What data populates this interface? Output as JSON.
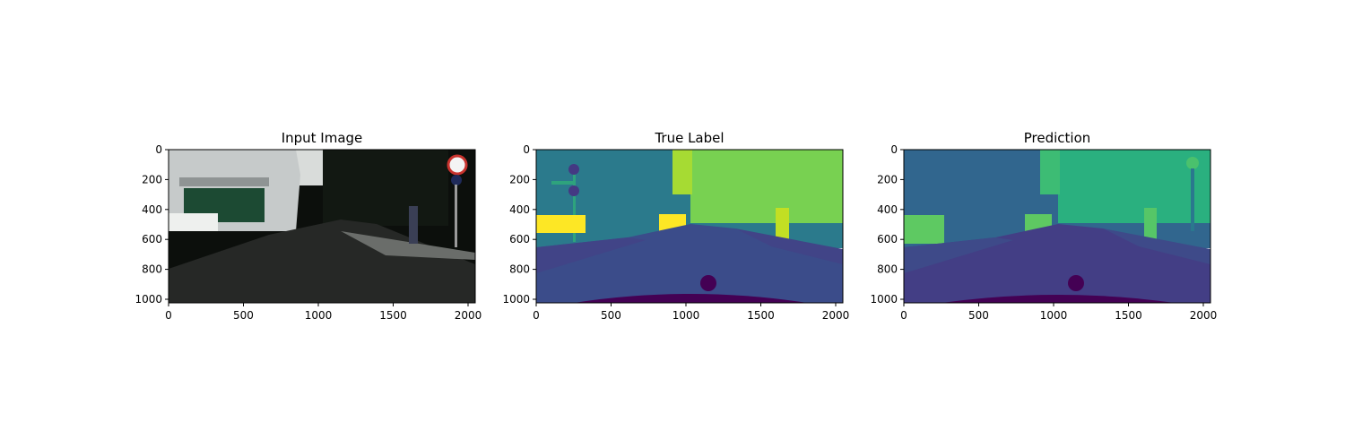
{
  "chart_data": [
    {
      "type": "heatmap",
      "title": "Input Image",
      "xlabel": "",
      "ylabel": "",
      "xlim": [
        0,
        2048
      ],
      "ylim": [
        1024,
        0
      ],
      "xticks": [
        0,
        500,
        1000,
        1500,
        2000
      ],
      "yticks": [
        0,
        200,
        400,
        600,
        800,
        1000
      ],
      "grid": false,
      "legend": "none",
      "content": "photo",
      "colors": {
        "sky": "#dde0de",
        "building": "#c4c8c8",
        "road": "#262826",
        "dark": "#0c0f0c"
      }
    },
    {
      "type": "heatmap",
      "title": "True Label",
      "xlabel": "",
      "ylabel": "",
      "xlim": [
        0,
        2048
      ],
      "ylim": [
        1024,
        0
      ],
      "xticks": [
        0,
        500,
        1000,
        1500,
        2000
      ],
      "yticks": [
        0,
        200,
        400,
        600,
        800,
        1000
      ],
      "grid": false,
      "legend": "none",
      "content": "segmentation",
      "colors": {
        "building": "#2b7a8c",
        "vegetation": "#78d151",
        "road": "#3b4c8a",
        "sidewalk": "#414487",
        "car": "#fde725",
        "person": "#c2df23",
        "ego": "#440154"
      }
    },
    {
      "type": "heatmap",
      "title": "Prediction",
      "xlabel": "",
      "ylabel": "",
      "xlim": [
        0,
        2048
      ],
      "ylim": [
        1024,
        0
      ],
      "xticks": [
        0,
        500,
        1000,
        1500,
        2000
      ],
      "yticks": [
        0,
        200,
        400,
        600,
        800,
        1000
      ],
      "grid": false,
      "legend": "none",
      "content": "segmentation",
      "colors": {
        "building": "#31668e",
        "vegetation": "#2ab07f",
        "road": "#433e85",
        "sidewalk": "#3e4a89",
        "car": "#5ec962",
        "person": "#56c667",
        "ego": "#440154"
      }
    }
  ]
}
